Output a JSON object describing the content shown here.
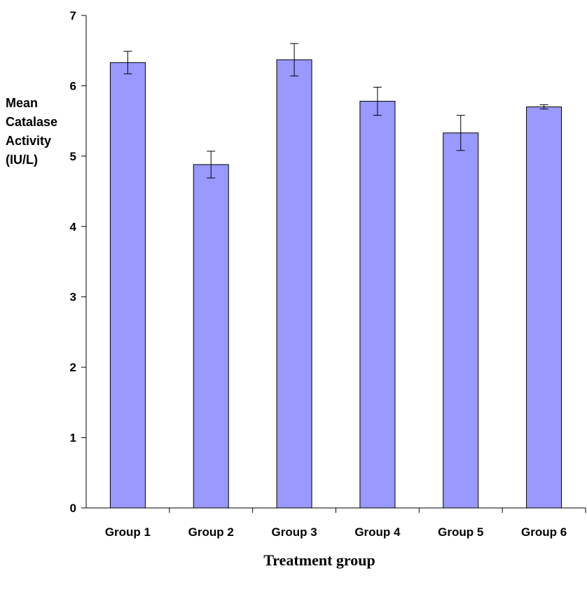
{
  "chart_data": {
    "type": "bar",
    "categories": [
      "Group 1",
      "Group 2",
      "Group 3",
      "Group 4",
      "Group 5",
      "Group 6"
    ],
    "values": [
      6.33,
      4.88,
      6.37,
      5.78,
      5.33,
      5.7
    ],
    "error": [
      0.16,
      0.19,
      0.23,
      0.2,
      0.25,
      0.03
    ],
    "ylabel_lines": [
      "Mean",
      "Catalase",
      "Activity",
      "(IU/L)"
    ],
    "xlabel": "Treatment group",
    "ylim": [
      0,
      7
    ],
    "yticks": [
      0,
      1,
      2,
      3,
      4,
      5,
      6,
      7
    ],
    "grid": false,
    "bar_color": "#9999ff",
    "bar_stroke": "#000000"
  }
}
